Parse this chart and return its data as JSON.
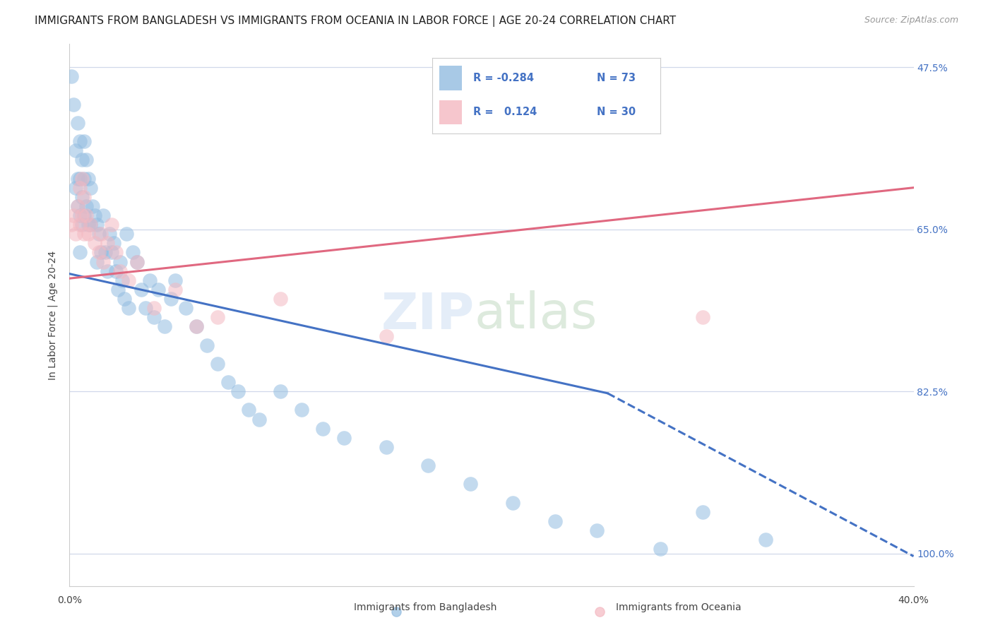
{
  "title": "IMMIGRANTS FROM BANGLADESH VS IMMIGRANTS FROM OCEANIA IN LABOR FORCE | AGE 20-24 CORRELATION CHART",
  "source": "Source: ZipAtlas.com",
  "ylabel": "In Labor Force | Age 20-24",
  "y_labels_right": [
    "100.0%",
    "82.5%",
    "65.0%",
    "47.5%"
  ],
  "color_blue": "#92bce0",
  "color_pink": "#f4b8c1",
  "color_blue_line": "#4472c4",
  "color_pink_line": "#e06880",
  "color_legend_r": "#4472c4",
  "bangladesh_x": [
    0.001,
    0.002,
    0.003,
    0.003,
    0.004,
    0.004,
    0.004,
    0.005,
    0.005,
    0.005,
    0.005,
    0.006,
    0.006,
    0.006,
    0.007,
    0.007,
    0.007,
    0.008,
    0.008,
    0.009,
    0.009,
    0.01,
    0.01,
    0.011,
    0.012,
    0.013,
    0.013,
    0.014,
    0.015,
    0.016,
    0.017,
    0.018,
    0.019,
    0.02,
    0.021,
    0.022,
    0.023,
    0.024,
    0.025,
    0.026,
    0.027,
    0.028,
    0.03,
    0.032,
    0.034,
    0.036,
    0.038,
    0.04,
    0.042,
    0.045,
    0.048,
    0.05,
    0.055,
    0.06,
    0.065,
    0.07,
    0.075,
    0.08,
    0.085,
    0.09,
    0.1,
    0.11,
    0.12,
    0.13,
    0.15,
    0.17,
    0.19,
    0.21,
    0.23,
    0.25,
    0.28,
    0.3,
    0.33
  ],
  "bangladesh_y": [
    0.99,
    0.96,
    0.91,
    0.87,
    0.94,
    0.88,
    0.85,
    0.92,
    0.88,
    0.84,
    0.8,
    0.9,
    0.86,
    0.83,
    0.92,
    0.88,
    0.84,
    0.9,
    0.85,
    0.88,
    0.83,
    0.87,
    0.83,
    0.85,
    0.84,
    0.83,
    0.79,
    0.82,
    0.8,
    0.84,
    0.8,
    0.78,
    0.82,
    0.8,
    0.81,
    0.78,
    0.76,
    0.79,
    0.77,
    0.75,
    0.82,
    0.74,
    0.8,
    0.79,
    0.76,
    0.74,
    0.77,
    0.73,
    0.76,
    0.72,
    0.75,
    0.77,
    0.74,
    0.72,
    0.7,
    0.68,
    0.66,
    0.65,
    0.63,
    0.62,
    0.65,
    0.63,
    0.61,
    0.6,
    0.59,
    0.57,
    0.55,
    0.53,
    0.51,
    0.5,
    0.48,
    0.52,
    0.49
  ],
  "oceania_x": [
    0.001,
    0.002,
    0.003,
    0.004,
    0.005,
    0.005,
    0.006,
    0.006,
    0.007,
    0.007,
    0.008,
    0.009,
    0.01,
    0.012,
    0.014,
    0.015,
    0.016,
    0.018,
    0.02,
    0.022,
    0.024,
    0.028,
    0.032,
    0.04,
    0.05,
    0.06,
    0.07,
    0.1,
    0.15,
    0.3
  ],
  "oceania_y": [
    0.83,
    0.84,
    0.82,
    0.85,
    0.83,
    0.87,
    0.84,
    0.88,
    0.82,
    0.86,
    0.84,
    0.82,
    0.83,
    0.81,
    0.8,
    0.82,
    0.79,
    0.81,
    0.83,
    0.8,
    0.78,
    0.77,
    0.79,
    0.74,
    0.76,
    0.72,
    0.73,
    0.75,
    0.71,
    0.73
  ],
  "xlim": [
    0.0,
    0.4
  ],
  "ylim": [
    0.44,
    1.025
  ],
  "yticks": [
    0.475,
    0.65,
    0.825,
    1.0
  ],
  "xticks": [
    0.0,
    0.1,
    0.2,
    0.3,
    0.4
  ],
  "grid_color": "#d0d8ea",
  "bg_color": "#ffffff",
  "title_fontsize": 11,
  "source_fontsize": 9,
  "axis_fontsize": 10,
  "tick_fontsize": 10,
  "right_label_color": "#4472c4"
}
